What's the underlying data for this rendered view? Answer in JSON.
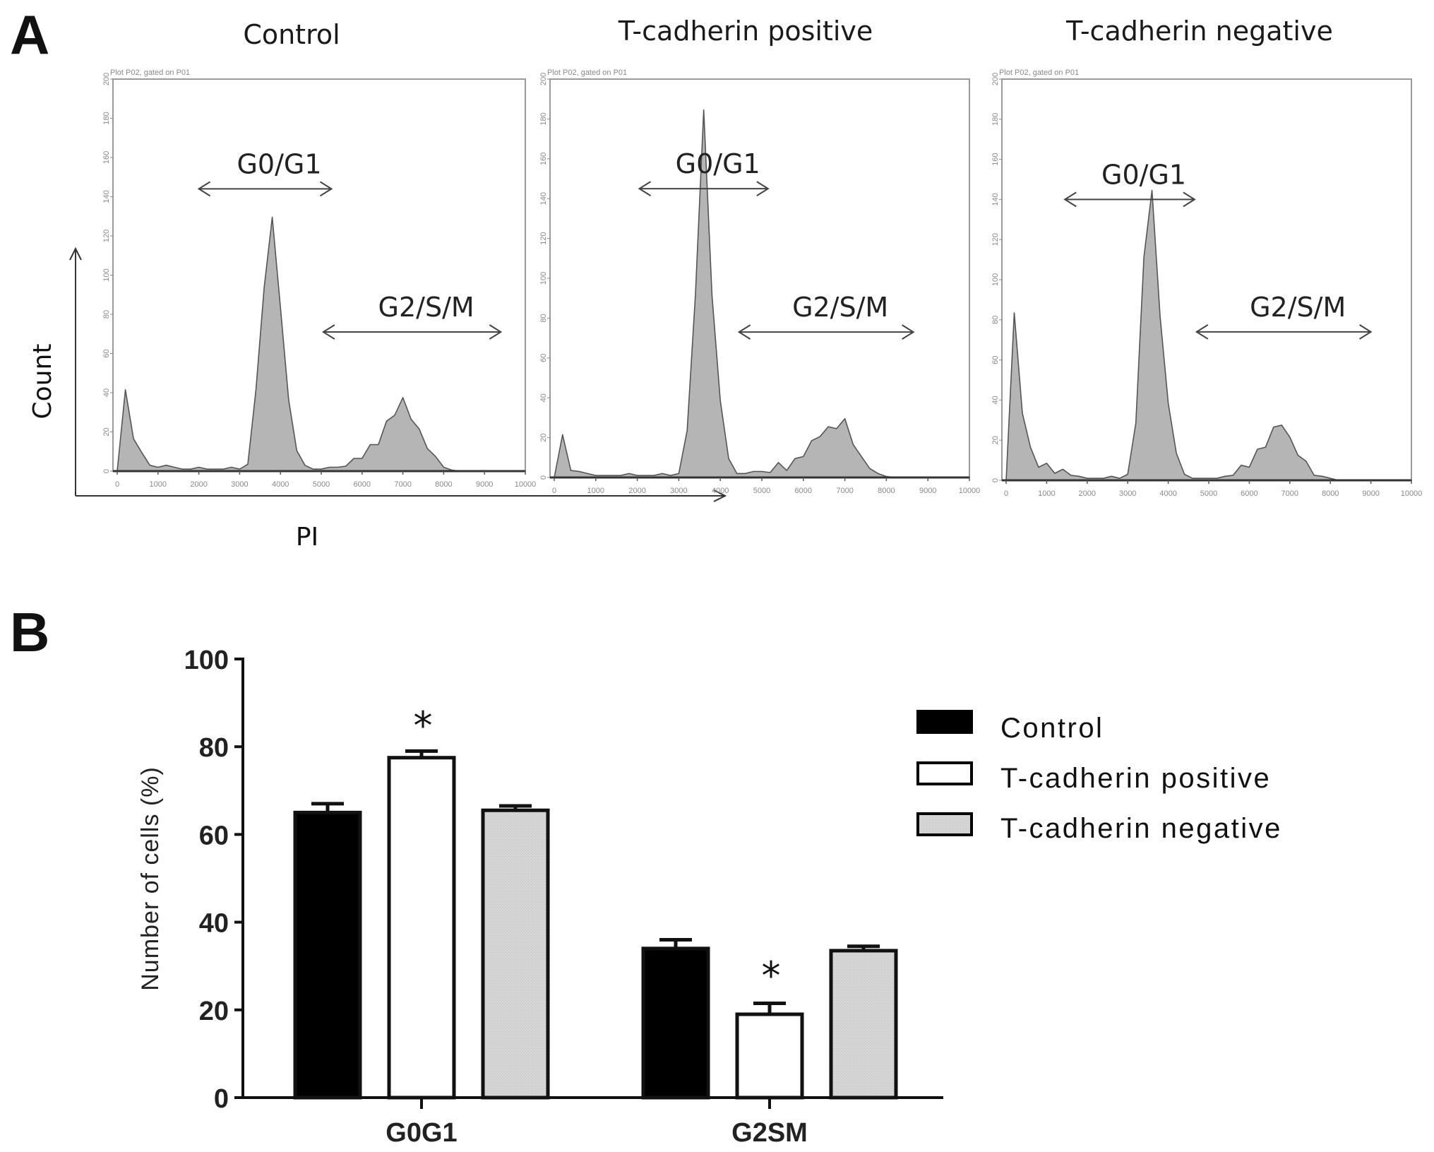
{
  "panel_a_label": "A",
  "panel_b_label": "B",
  "axes_a": {
    "ylabel": "Count",
    "xlabel": "PI"
  },
  "chart_data": [
    {
      "type": "area",
      "title": "Control",
      "subtitle": "Plot P02, gated on P01",
      "xlabel": "PI",
      "ylabel": "Count",
      "xlim": [
        0,
        10000
      ],
      "ylim": [
        0,
        200
      ],
      "xticks": [
        "0",
        "1000",
        "2000",
        "3000",
        "4000",
        "5000",
        "6000",
        "7000",
        "8000",
        "9000",
        "10000"
      ],
      "yticks": [
        "0",
        "20",
        "40",
        "60",
        "80",
        "100",
        "120",
        "140",
        "160",
        "180",
        "200"
      ],
      "annotations": [
        {
          "label": "G0/G1",
          "x_range": [
            2000,
            5250
          ],
          "y": 144
        },
        {
          "label": "G2/S/M",
          "x_range": [
            5050,
            9400
          ],
          "y": 71
        }
      ],
      "x": [
        0,
        200,
        400,
        600,
        800,
        1000,
        1200,
        1400,
        1600,
        1800,
        2000,
        2200,
        2400,
        2600,
        2800,
        3000,
        3200,
        3400,
        3600,
        3800,
        4000,
        4200,
        4400,
        4600,
        4800,
        5000,
        5200,
        5400,
        5600,
        5800,
        6000,
        6200,
        6400,
        6600,
        6800,
        7000,
        7200,
        7400,
        7600,
        7800,
        8000,
        8200,
        8400,
        8600,
        8800,
        9000,
        9200,
        9400,
        9600,
        9800,
        10000
      ],
      "y": [
        0,
        40,
        18,
        8,
        3,
        2,
        3,
        2,
        1,
        1,
        2,
        1,
        1,
        1,
        2,
        1,
        5,
        40,
        95,
        128,
        85,
        35,
        12,
        3,
        1,
        1,
        2,
        2,
        4,
        5,
        8,
        12,
        15,
        24,
        30,
        36,
        28,
        20,
        13,
        6,
        2,
        0.5,
        0,
        0,
        0,
        0,
        0,
        0,
        0,
        0,
        0
      ]
    },
    {
      "type": "area",
      "title": "T-cadherin positive",
      "subtitle": "Plot P02, gated on P01",
      "xlabel": "PI",
      "ylabel": "Count",
      "xlim": [
        0,
        10000
      ],
      "ylim": [
        0,
        200
      ],
      "xticks": [
        "0",
        "1000",
        "2000",
        "3000",
        "4000",
        "5000",
        "6000",
        "7000",
        "8000",
        "9000",
        "10000"
      ],
      "yticks": [
        "0",
        "20",
        "40",
        "60",
        "80",
        "100",
        "120",
        "140",
        "160",
        "180",
        "200"
      ],
      "annotations": [
        {
          "label": "G0/G1",
          "x_range": [
            2050,
            5150
          ],
          "y": 145
        },
        {
          "label": "G2/S/M",
          "x_range": [
            4450,
            8650
          ],
          "y": 73
        }
      ],
      "x": [
        0,
        200,
        400,
        600,
        800,
        1000,
        1200,
        1400,
        1600,
        1800,
        2000,
        2200,
        2400,
        2600,
        2800,
        3000,
        3200,
        3400,
        3600,
        3800,
        4000,
        4200,
        4400,
        4600,
        4800,
        5000,
        5200,
        5400,
        5600,
        5800,
        6000,
        6200,
        6400,
        6600,
        6800,
        7000,
        7200,
        7400,
        7600,
        7800,
        8000,
        8200,
        8400,
        8600,
        8800,
        9000,
        9200,
        9400,
        9600,
        9800,
        10000
      ],
      "y": [
        0,
        20,
        5,
        3,
        2,
        1,
        1,
        1,
        1,
        2,
        1,
        1,
        1,
        2,
        1,
        2,
        25,
        90,
        186,
        90,
        40,
        8,
        2,
        2,
        3,
        3,
        4,
        6,
        5,
        8,
        12,
        17,
        22,
        24,
        26,
        28,
        18,
        9,
        6,
        2,
        0.5,
        0,
        0,
        0,
        0,
        0,
        0,
        0,
        0,
        0,
        0
      ]
    },
    {
      "type": "area",
      "title": "T-cadherin negative",
      "subtitle": "Plot P02, gated on P01",
      "xlabel": "PI",
      "ylabel": "Count",
      "xlim": [
        0,
        10000
      ],
      "ylim": [
        0,
        200
      ],
      "xticks": [
        "0",
        "1000",
        "2000",
        "3000",
        "4000",
        "5000",
        "6000",
        "7000",
        "8000",
        "9000",
        "10000"
      ],
      "yticks": [
        "0",
        "20",
        "40",
        "60",
        "80",
        "100",
        "120",
        "140",
        "160",
        "180",
        "200"
      ],
      "annotations": [
        {
          "label": "G0/G1",
          "x_range": [
            1450,
            4650
          ],
          "y": 140
        },
        {
          "label": "G2/S/M",
          "x_range": [
            4700,
            9000
          ],
          "y": 74
        }
      ],
      "x": [
        0,
        200,
        400,
        600,
        800,
        1000,
        1200,
        1400,
        1600,
        1800,
        2000,
        2200,
        2400,
        2600,
        2800,
        3000,
        3200,
        3400,
        3600,
        3800,
        4000,
        4200,
        4400,
        4600,
        4800,
        5000,
        5200,
        5400,
        5600,
        5800,
        6000,
        6200,
        6400,
        6600,
        6800,
        7000,
        7200,
        7400,
        7600,
        7800,
        8000,
        8200,
        8400,
        8600,
        8800,
        9000,
        9200,
        9400,
        9600,
        9800,
        10000
      ],
      "y": [
        0,
        82,
        35,
        15,
        8,
        7,
        5,
        4,
        4,
        2,
        1,
        1,
        1,
        2,
        1,
        3,
        30,
        110,
        146,
        80,
        40,
        12,
        3,
        1,
        1,
        1,
        1,
        2,
        4,
        6,
        8,
        14,
        18,
        25,
        29,
        20,
        14,
        8,
        4,
        2,
        1,
        0,
        0,
        0,
        0,
        0,
        0,
        0,
        0,
        0,
        0
      ]
    },
    {
      "type": "bar",
      "title": "",
      "xlabel": "",
      "ylabel": "Number of cells (%)",
      "ylim": [
        0,
        100
      ],
      "yticks": [
        "0",
        "20",
        "40",
        "60",
        "80",
        "100"
      ],
      "categories": [
        "G0G1",
        "G2SM"
      ],
      "series": [
        {
          "name": "Control",
          "color": "#000000",
          "values": [
            65,
            34
          ],
          "errors": [
            2,
            2
          ]
        },
        {
          "name": "T-cadherin positive",
          "color": "#ffffff",
          "values": [
            77.5,
            19
          ],
          "errors": [
            1.5,
            2.5
          ]
        },
        {
          "name": "T-cadherin negative",
          "color": "#d3d3d3",
          "values": [
            65.5,
            33.5
          ],
          "errors": [
            1,
            1
          ]
        }
      ],
      "significance": [
        {
          "category": "G0G1",
          "series": "T-cadherin positive",
          "mark": "*"
        },
        {
          "category": "G2SM",
          "series": "T-cadherin positive",
          "mark": "*"
        }
      ],
      "legend": "right"
    }
  ]
}
